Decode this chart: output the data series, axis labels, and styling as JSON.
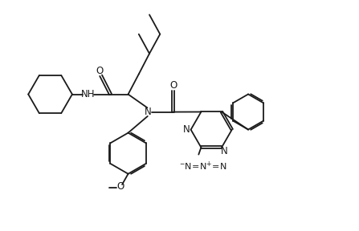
{
  "bg_color": "#ffffff",
  "line_color": "#1a1a1a",
  "line_width": 1.3,
  "font_size": 8.5,
  "figsize": [
    4.47,
    2.88
  ],
  "dpi": 100,
  "xlim": [
    0,
    10
  ],
  "ylim": [
    0,
    6.5
  ]
}
